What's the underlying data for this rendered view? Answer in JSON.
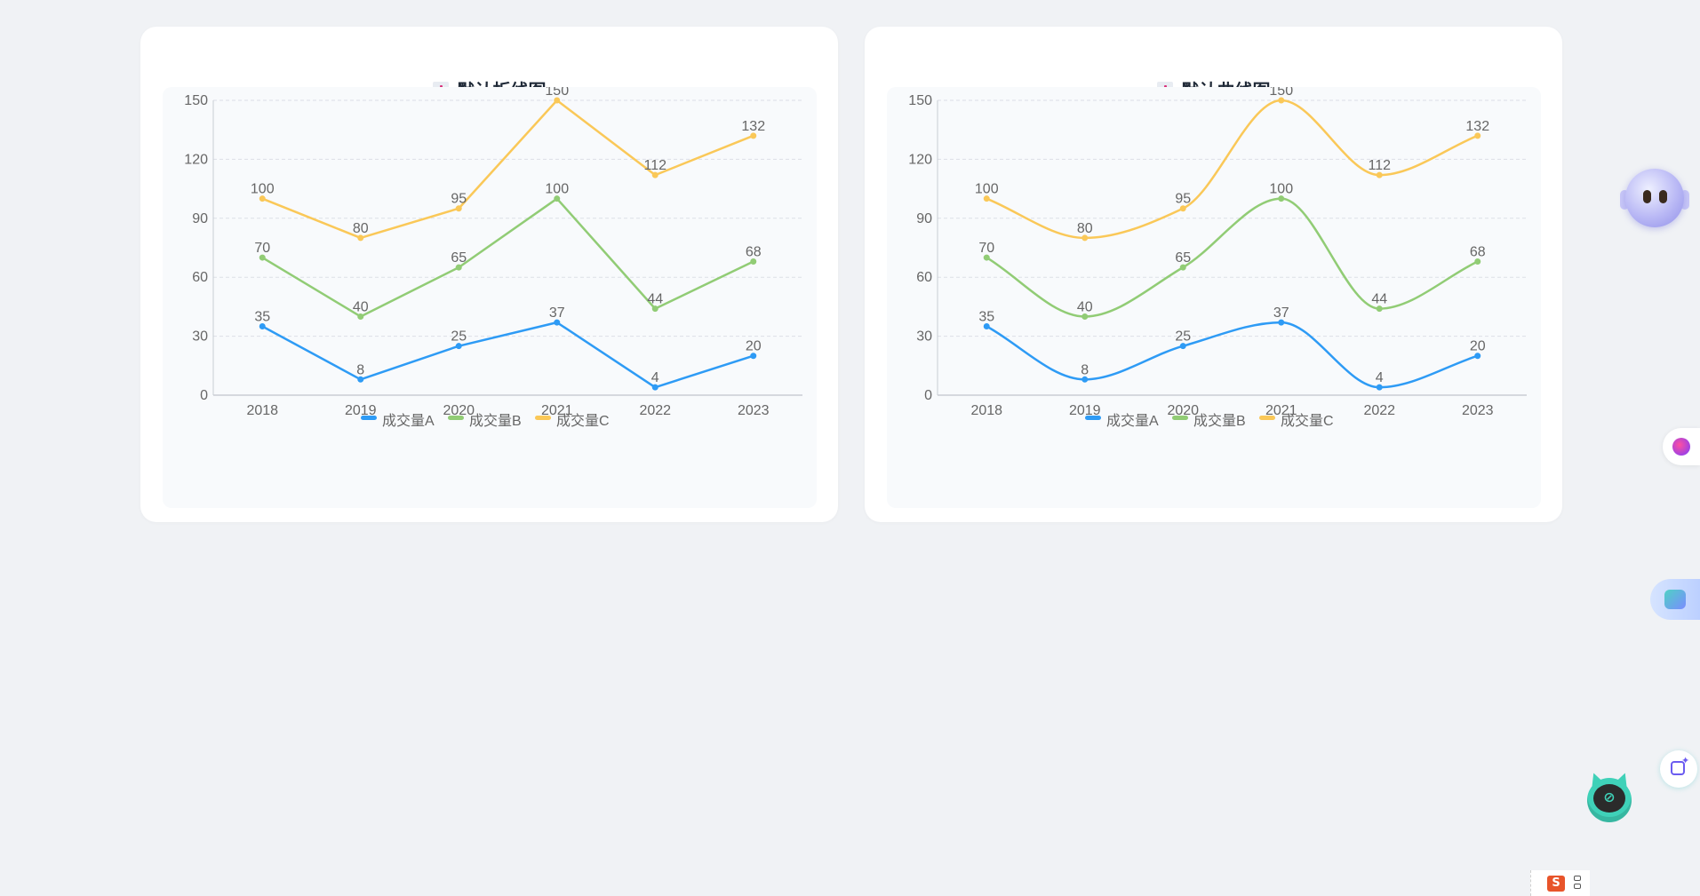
{
  "cards": [
    {
      "title": "默认折线图",
      "icon": "bar-chart-icon"
    },
    {
      "title": "默认曲线图",
      "icon": "bar-chart-icon"
    }
  ],
  "chart_data": [
    {
      "type": "line",
      "title": "默认折线图",
      "smooth": false,
      "categories": [
        "2018",
        "2019",
        "2020",
        "2021",
        "2022",
        "2023"
      ],
      "yticks": [
        "0",
        "30",
        "60",
        "90",
        "120",
        "150"
      ],
      "ylim": [
        0,
        150
      ],
      "grid": true,
      "legend_position": "bottom-center",
      "series": [
        {
          "name": "成交量A",
          "color": "#2e9bf5",
          "values": [
            35,
            8,
            25,
            37,
            4,
            20
          ]
        },
        {
          "name": "成交量B",
          "color": "#91cc75",
          "values": [
            70,
            40,
            65,
            100,
            44,
            68
          ]
        },
        {
          "name": "成交量C",
          "color": "#fac858",
          "values": [
            100,
            80,
            95,
            150,
            112,
            132
          ]
        }
      ]
    },
    {
      "type": "line",
      "title": "默认曲线图",
      "smooth": true,
      "categories": [
        "2018",
        "2019",
        "2020",
        "2021",
        "2022",
        "2023"
      ],
      "yticks": [
        "0",
        "30",
        "60",
        "90",
        "120",
        "150"
      ],
      "ylim": [
        0,
        150
      ],
      "grid": true,
      "legend_position": "bottom-center",
      "series": [
        {
          "name": "成交量A",
          "color": "#2e9bf5",
          "values": [
            35,
            8,
            25,
            37,
            4,
            20
          ]
        },
        {
          "name": "成交量B",
          "color": "#91cc75",
          "values": [
            70,
            40,
            65,
            100,
            44,
            68
          ]
        },
        {
          "name": "成交量C",
          "color": "#fac858",
          "values": [
            100,
            80,
            95,
            150,
            112,
            132
          ]
        }
      ]
    }
  ],
  "floating_widgets": {
    "assistant": "robot-assistant-icon",
    "ai_dot": "ai-dot-icon",
    "translate": "translate-icon",
    "edit": "ai-edit-icon",
    "mascot": "cat-mascot-icon",
    "toolbar_logo": "S"
  }
}
